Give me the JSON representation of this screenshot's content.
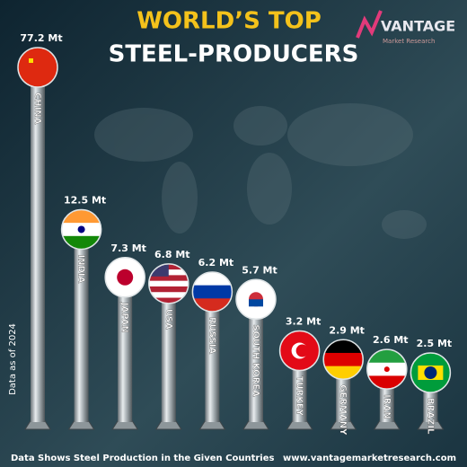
{
  "chart_data": {
    "type": "bar",
    "title": "WORLD’S TOP",
    "subtitle": "STEEL-PRODUCERS",
    "brand": "VANTAGE",
    "brand_tagline": "Market Research",
    "side_note": "Data as of 2024",
    "footnote": "Data Shows Steel Production in the Given Countries",
    "website": "www.vantagemarketresearch.com",
    "categories": [
      "CHINA",
      "INDIA",
      "JAPAN",
      "USA",
      "RUSSIA",
      "SOUTH KOREA",
      "TURKEY",
      "GERMANY",
      "IRAN",
      "BRAZIL"
    ],
    "values": [
      77.2,
      12.5,
      7.3,
      6.8,
      6.2,
      5.7,
      3.2,
      2.9,
      2.6,
      2.5
    ],
    "value_labels": [
      "77.2 Mt",
      "12.5 Mt",
      "7.3 Mt",
      "6.8 Mt",
      "6.2 Mt",
      "5.7 Mt",
      "3.2 Mt",
      "2.9 Mt",
      "2.6 Mt",
      "2.5 Mt"
    ],
    "log_scale": true
  }
}
